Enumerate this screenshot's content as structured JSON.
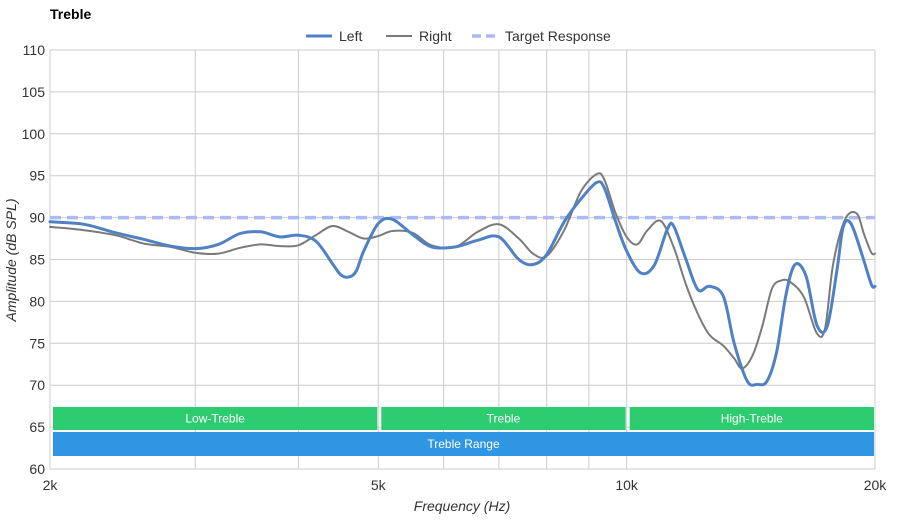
{
  "chart_data": {
    "type": "line",
    "title": "Treble",
    "xlabel": "Frequency (Hz)",
    "ylabel": "Amplitude (dB SPL)",
    "x_scale": "log",
    "xlim": [
      2000,
      20000
    ],
    "ylim": [
      60,
      110
    ],
    "y_ticks": [
      60,
      65,
      70,
      75,
      80,
      85,
      90,
      95,
      100,
      105,
      110
    ],
    "x_ticks": [
      {
        "value": 2000,
        "label": "2k"
      },
      {
        "value": 5000,
        "label": "5k"
      },
      {
        "value": 10000,
        "label": "10k"
      },
      {
        "value": 20000,
        "label": "20k"
      }
    ],
    "x_gridlines": [
      2000,
      3000,
      4000,
      5000,
      6000,
      7000,
      8000,
      9000,
      10000,
      20000
    ],
    "grid": true,
    "legend_position": "top-center",
    "legend": [
      {
        "label": "Left",
        "color": "#4f81c4",
        "style": "solid-thick"
      },
      {
        "label": "Right",
        "color": "#7a7a7a",
        "style": "solid"
      },
      {
        "label": "Target Response",
        "color": "#aabbf5",
        "style": "dashed"
      }
    ],
    "series": [
      {
        "name": "Left",
        "color": "#4f81c4",
        "x": [
          2000,
          2200,
          2400,
          2600,
          2800,
          3000,
          3200,
          3400,
          3600,
          3800,
          4000,
          4200,
          4400,
          4500,
          4600,
          4700,
          4800,
          5000,
          5200,
          5500,
          5800,
          6200,
          6600,
          7000,
          7400,
          7700,
          8000,
          8400,
          8800,
          9200,
          9400,
          9700,
          10000,
          10400,
          10800,
          11200,
          11400,
          11800,
          12200,
          12600,
          13100,
          13500,
          14000,
          14400,
          14800,
          15200,
          15600,
          16000,
          16500,
          17000,
          17500,
          18000,
          18300,
          18700,
          19300,
          19800,
          20000
        ],
        "y": [
          89.5,
          89.2,
          88.2,
          87.4,
          86.6,
          86.3,
          86.8,
          88.1,
          88.3,
          87.7,
          87.9,
          87.2,
          84.5,
          83.2,
          82.9,
          83.6,
          86.0,
          89.3,
          89.8,
          88.0,
          86.5,
          86.5,
          87.3,
          87.7,
          85.0,
          84.4,
          85.6,
          89.5,
          92.2,
          94.2,
          93.5,
          89.5,
          86.0,
          83.4,
          84.3,
          88.6,
          89.0,
          85.0,
          81.4,
          81.8,
          80.6,
          75.0,
          70.5,
          70.1,
          70.5,
          74.0,
          80.8,
          84.4,
          83.0,
          77.2,
          77.0,
          84.0,
          88.9,
          89.3,
          85.5,
          82.0,
          81.8
        ]
      },
      {
        "name": "Right",
        "color": "#7a7a7a",
        "x": [
          2000,
          2200,
          2400,
          2600,
          2800,
          3000,
          3200,
          3400,
          3600,
          3800,
          4000,
          4200,
          4400,
          4600,
          4800,
          5000,
          5200,
          5500,
          5800,
          6200,
          6600,
          7000,
          7400,
          7700,
          8000,
          8400,
          8800,
          9200,
          9400,
          9700,
          10000,
          10300,
          10600,
          11000,
          11400,
          11800,
          12200,
          12600,
          13100,
          13500,
          13800,
          14200,
          14600,
          15000,
          15400,
          15800,
          16400,
          17000,
          17400,
          17800,
          18400,
          19000,
          19400,
          19800,
          20000
        ],
        "y": [
          88.9,
          88.5,
          87.9,
          86.9,
          86.5,
          85.8,
          85.7,
          86.4,
          86.8,
          86.6,
          86.7,
          87.9,
          89.0,
          88.3,
          87.5,
          87.8,
          88.4,
          88.2,
          86.7,
          86.5,
          88.3,
          89.2,
          87.5,
          85.7,
          85.4,
          88.5,
          93.1,
          95.2,
          94.5,
          90.5,
          87.7,
          86.8,
          88.5,
          89.6,
          86.5,
          82.0,
          78.5,
          76.0,
          74.7,
          73.2,
          72.0,
          73.5,
          77.0,
          81.5,
          82.5,
          82.3,
          80.5,
          76.2,
          76.8,
          84.5,
          89.8,
          90.5,
          88.0,
          85.8,
          85.7
        ]
      },
      {
        "name": "Target Response",
        "color": "#aabbf5",
        "x": [
          2000,
          20000
        ],
        "y": [
          90,
          90
        ]
      }
    ],
    "ranges": [
      {
        "label": "Low-Treble",
        "from": 2000,
        "to": 5000,
        "color": "#2ecc71",
        "row": 1
      },
      {
        "label": "Treble",
        "from": 5000,
        "to": 10000,
        "color": "#2ecc71",
        "row": 1
      },
      {
        "label": "High-Treble",
        "from": 10000,
        "to": 20000,
        "color": "#2ecc71",
        "row": 1
      },
      {
        "label": "Treble Range",
        "from": 2000,
        "to": 20000,
        "color": "#2f96e4",
        "row": 2
      }
    ]
  }
}
